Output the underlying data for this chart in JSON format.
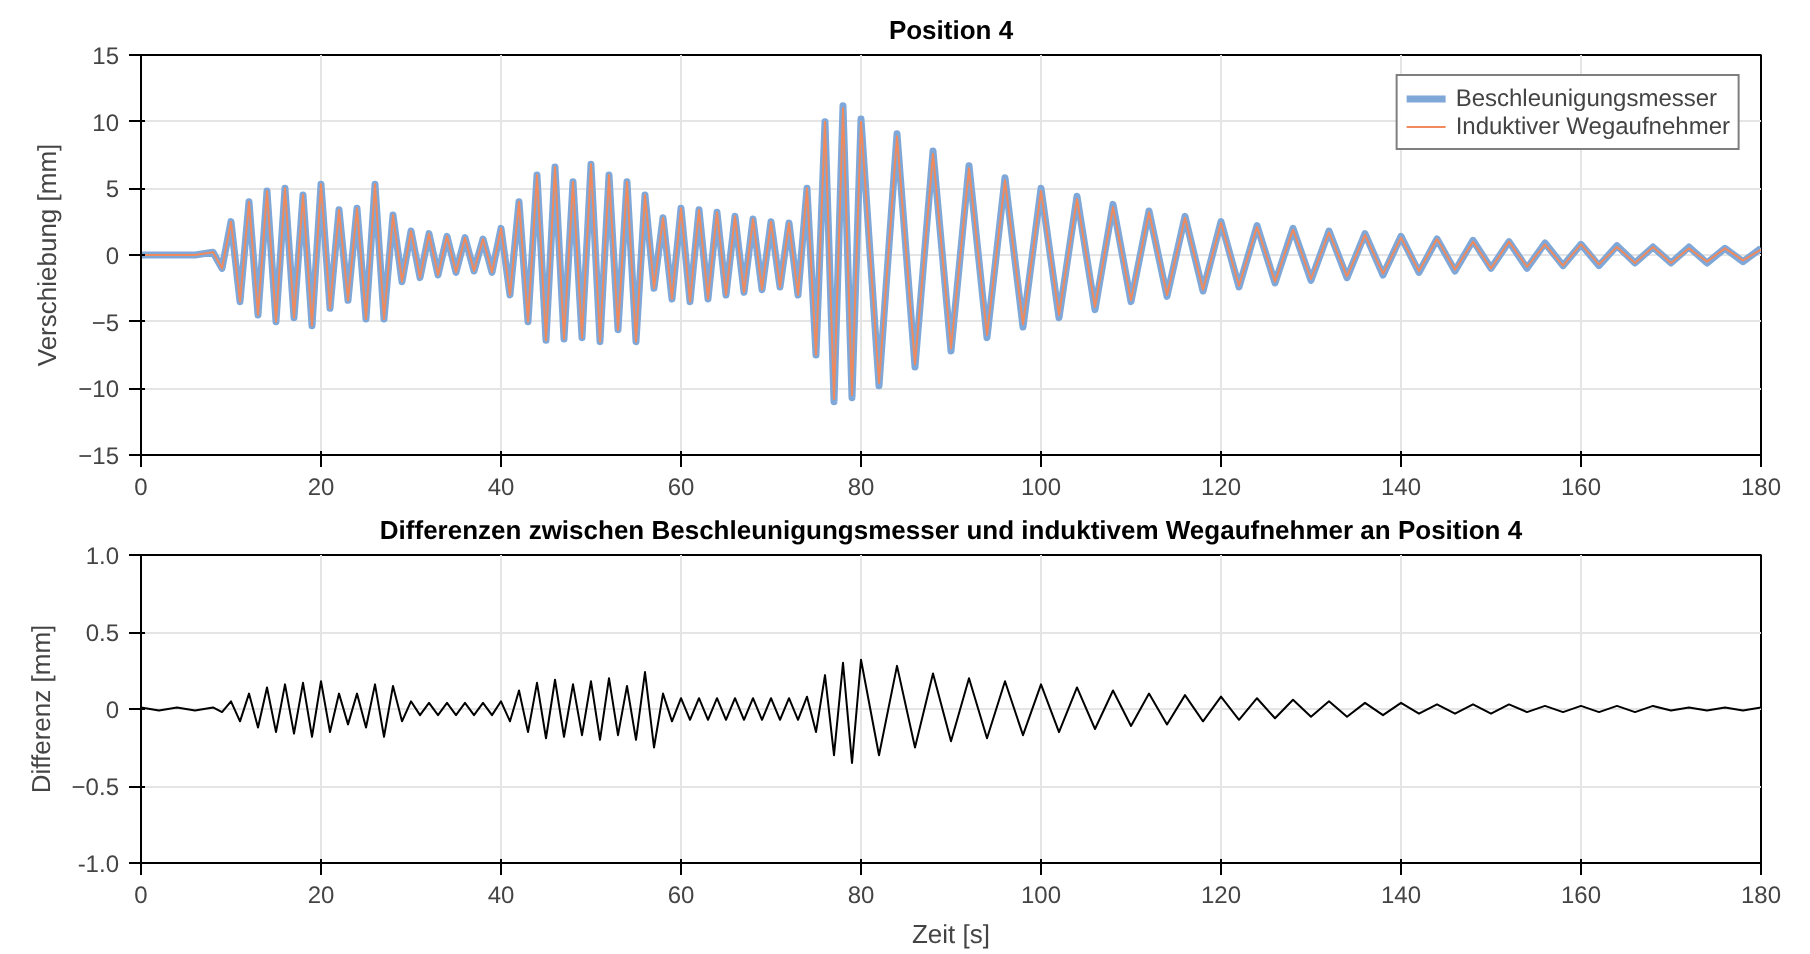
{
  "chart_data": [
    {
      "type": "line",
      "title": "Position 4",
      "ylabel": "Verschiebung [mm]",
      "xlim": [
        0,
        180
      ],
      "xticks": [
        0,
        20,
        40,
        60,
        80,
        100,
        120,
        140,
        160,
        180
      ],
      "ylim": [
        -15,
        15
      ],
      "yticks": [
        -15,
        -10,
        -5,
        0,
        5,
        10,
        15
      ],
      "grid": true,
      "legend": "top right",
      "line_style": "solid",
      "x": [
        0,
        2,
        4,
        6,
        8,
        9,
        10,
        11,
        12,
        13,
        14,
        15,
        16,
        17,
        18,
        19,
        20,
        21,
        22,
        23,
        24,
        25,
        26,
        27,
        28,
        29,
        30,
        31,
        32,
        33,
        34,
        35,
        36,
        37,
        38,
        39,
        40,
        41,
        42,
        43,
        44,
        45,
        46,
        47,
        48,
        49,
        50,
        51,
        52,
        53,
        54,
        55,
        56,
        57,
        58,
        59,
        60,
        61,
        62,
        63,
        64,
        65,
        66,
        67,
        68,
        69,
        70,
        71,
        72,
        73,
        74,
        75,
        76,
        77,
        78,
        79,
        80,
        82,
        84,
        86,
        88,
        90,
        92,
        94,
        96,
        98,
        100,
        102,
        104,
        106,
        108,
        110,
        112,
        114,
        116,
        118,
        120,
        122,
        124,
        126,
        128,
        130,
        132,
        134,
        136,
        138,
        140,
        142,
        144,
        146,
        148,
        150,
        152,
        154,
        156,
        158,
        160,
        162,
        164,
        166,
        168,
        170,
        172,
        174,
        176,
        178,
        180
      ],
      "series": [
        {
          "name": "Beschleunigungsmesser",
          "color": "#7fa8d8",
          "values": [
            0,
            0,
            0,
            0,
            0.2,
            -1,
            2.5,
            -3.5,
            4,
            -4.5,
            4.8,
            -5,
            5,
            -4.7,
            4.5,
            -5.3,
            5.3,
            -4,
            3.4,
            -3.4,
            3.5,
            -4.8,
            5.3,
            -4.8,
            3,
            -2,
            1.8,
            -1.7,
            1.6,
            -1.5,
            1.4,
            -1.3,
            1.3,
            -1.2,
            1.2,
            -1.3,
            2,
            -3,
            4,
            -5,
            6,
            -6.4,
            6.6,
            -6.3,
            5.5,
            -6.2,
            6.8,
            -6.5,
            6,
            -5.6,
            5.5,
            -6.5,
            4.5,
            -2.5,
            2.8,
            -3.3,
            3.5,
            -3.5,
            3.4,
            -3.3,
            3.2,
            -3,
            2.9,
            -2.8,
            2.7,
            -2.6,
            2.5,
            -2.4,
            2.4,
            -3,
            5,
            -7.5,
            10,
            -11,
            11.2,
            -10.7,
            10.2,
            -9.8,
            9.1,
            -8.4,
            7.8,
            -7.2,
            6.7,
            -6.2,
            5.8,
            -5.4,
            5,
            -4.7,
            4.4,
            -4.1,
            3.8,
            -3.5,
            3.3,
            -3.1,
            2.9,
            -2.7,
            2.5,
            -2.4,
            2.2,
            -2.1,
            2,
            -1.9,
            1.8,
            -1.7,
            1.6,
            -1.5,
            1.4,
            -1.3,
            1.2,
            -1.2,
            1.1,
            -1,
            1,
            -1,
            0.9,
            -0.8,
            0.8,
            -0.8,
            0.7,
            -0.6,
            0.6,
            -0.6,
            0.6,
            -0.6,
            0.5,
            -0.5,
            0.5
          ]
        },
        {
          "name": "Induktiver Wegaufnehmer",
          "color": "#f08a5d",
          "values": [
            0,
            0,
            0,
            0,
            0.2,
            -1,
            2.5,
            -3.5,
            4,
            -4.5,
            4.8,
            -5,
            5,
            -4.7,
            4.5,
            -5.3,
            5.3,
            -4,
            3.4,
            -3.4,
            3.5,
            -4.8,
            5.3,
            -4.8,
            3,
            -2,
            1.8,
            -1.7,
            1.6,
            -1.5,
            1.4,
            -1.3,
            1.3,
            -1.2,
            1.2,
            -1.3,
            2,
            -3,
            4,
            -5,
            6,
            -6.4,
            6.6,
            -6.3,
            5.5,
            -6.2,
            6.8,
            -6.5,
            6,
            -5.6,
            5.5,
            -6.5,
            4.5,
            -2.5,
            2.8,
            -3.3,
            3.5,
            -3.5,
            3.4,
            -3.3,
            3.2,
            -3,
            2.9,
            -2.8,
            2.7,
            -2.6,
            2.5,
            -2.4,
            2.4,
            -3,
            5,
            -7.5,
            10,
            -10.8,
            11,
            -10.5,
            10,
            -9.6,
            8.9,
            -8.2,
            7.6,
            -7,
            6.5,
            -6,
            5.6,
            -5.2,
            4.8,
            -4.5,
            4.2,
            -3.9,
            3.6,
            -3.4,
            3.2,
            -3,
            2.8,
            -2.6,
            2.4,
            -2.3,
            2.1,
            -2,
            1.9,
            -1.8,
            1.7,
            -1.6,
            1.5,
            -1.4,
            1.3,
            -1.2,
            1.2,
            -1.1,
            1,
            -1,
            1,
            -0.9,
            0.8,
            -0.8,
            0.8,
            -0.7,
            0.6,
            -0.6,
            0.6,
            -0.6,
            0.5,
            -0.5,
            0.5,
            -0.4,
            0.4
          ]
        }
      ]
    },
    {
      "type": "line",
      "title": "Differenzen zwischen Beschleunigungsmesser und induktivem Wegaufnehmer an Position 4",
      "xlabel": "Zeit [s]",
      "ylabel": "Differenz [mm]",
      "xlim": [
        0,
        180
      ],
      "xticks": [
        0,
        20,
        40,
        60,
        80,
        100,
        120,
        140,
        160,
        180
      ],
      "ylim": [
        -1,
        1
      ],
      "yticks": [
        {
          "value": -1,
          "label": "-1.0"
        },
        -0.5,
        0,
        0.5,
        {
          "value": 1,
          "label": "1.0"
        }
      ],
      "grid": true,
      "line_style": "solid",
      "x": [
        0,
        2,
        4,
        6,
        8,
        9,
        10,
        11,
        12,
        13,
        14,
        15,
        16,
        17,
        18,
        19,
        20,
        21,
        22,
        23,
        24,
        25,
        26,
        27,
        28,
        29,
        30,
        31,
        32,
        33,
        34,
        35,
        36,
        37,
        38,
        39,
        40,
        41,
        42,
        43,
        44,
        45,
        46,
        47,
        48,
        49,
        50,
        51,
        52,
        53,
        54,
        55,
        56,
        57,
        58,
        59,
        60,
        61,
        62,
        63,
        64,
        65,
        66,
        67,
        68,
        69,
        70,
        71,
        72,
        73,
        74,
        75,
        76,
        77,
        78,
        79,
        80,
        82,
        84,
        86,
        88,
        90,
        92,
        94,
        96,
        98,
        100,
        102,
        104,
        106,
        108,
        110,
        112,
        114,
        116,
        118,
        120,
        122,
        124,
        126,
        128,
        130,
        132,
        134,
        136,
        138,
        140,
        142,
        144,
        146,
        148,
        150,
        152,
        154,
        156,
        158,
        160,
        162,
        164,
        166,
        168,
        170,
        172,
        174,
        176,
        178,
        180
      ],
      "series": [
        {
          "color": "#000000",
          "values": [
            0.01,
            -0.01,
            0.01,
            -0.01,
            0.01,
            -0.02,
            0.05,
            -0.08,
            0.1,
            -0.12,
            0.14,
            -0.15,
            0.16,
            -0.16,
            0.17,
            -0.18,
            0.18,
            -0.15,
            0.1,
            -0.1,
            0.1,
            -0.12,
            0.16,
            -0.18,
            0.15,
            -0.08,
            0.05,
            -0.04,
            0.04,
            -0.04,
            0.04,
            -0.04,
            0.04,
            -0.04,
            0.04,
            -0.04,
            0.05,
            -0.08,
            0.12,
            -0.15,
            0.17,
            -0.19,
            0.19,
            -0.18,
            0.16,
            -0.17,
            0.18,
            -0.2,
            0.2,
            -0.17,
            0.15,
            -0.2,
            0.24,
            -0.25,
            0.1,
            -0.08,
            0.07,
            -0.07,
            0.07,
            -0.07,
            0.07,
            -0.07,
            0.07,
            -0.07,
            0.07,
            -0.07,
            0.07,
            -0.07,
            0.07,
            -0.07,
            0.08,
            -0.15,
            0.22,
            -0.3,
            0.3,
            -0.35,
            0.32,
            -0.3,
            0.28,
            -0.25,
            0.23,
            -0.21,
            0.2,
            -0.19,
            0.18,
            -0.17,
            0.16,
            -0.15,
            0.14,
            -0.13,
            0.12,
            -0.11,
            0.1,
            -0.1,
            0.09,
            -0.08,
            0.08,
            -0.07,
            0.07,
            -0.06,
            0.06,
            -0.05,
            0.05,
            -0.05,
            0.04,
            -0.04,
            0.04,
            -0.03,
            0.03,
            -0.03,
            0.03,
            -0.03,
            0.03,
            -0.02,
            0.02,
            -0.02,
            0.02,
            -0.02,
            0.02,
            -0.02,
            0.02,
            -0.01,
            0.01,
            -0.01,
            0.01,
            -0.01,
            0.01
          ]
        }
      ]
    }
  ]
}
